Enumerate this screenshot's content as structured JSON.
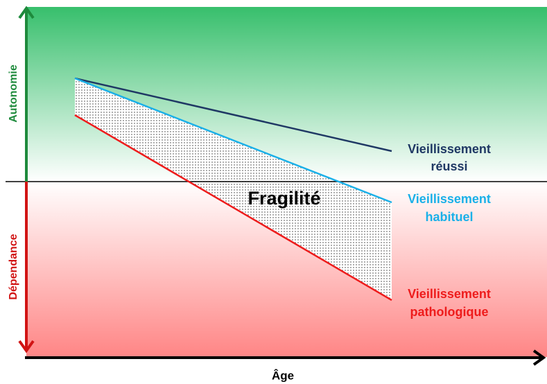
{
  "axes": {
    "y_upper": "Autonomie",
    "y_lower": "Dépendance",
    "x": "Âge"
  },
  "zone_label": "Fragilité",
  "curves": [
    {
      "lines": [
        "Vieillissement",
        "réussi"
      ]
    },
    {
      "lines": [
        "Vieillissement",
        "habituel"
      ]
    },
    {
      "lines": [
        "Vieillissement",
        "pathologique"
      ]
    }
  ]
}
